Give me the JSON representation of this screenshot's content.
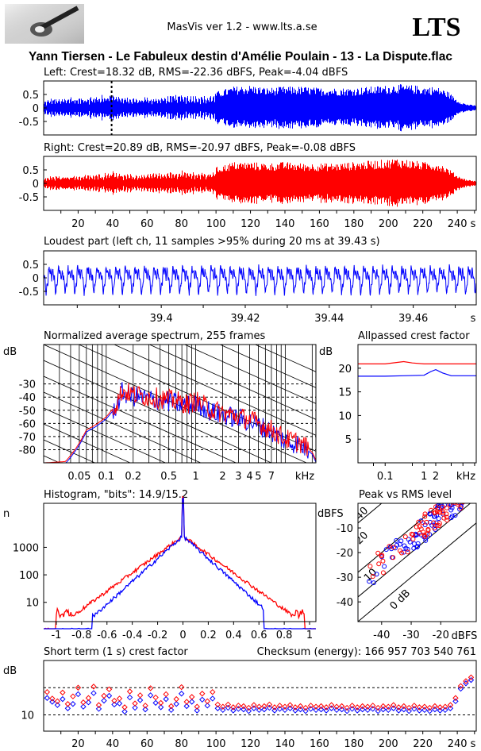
{
  "header": {
    "app": "MasVis ver 1.2 - www.lts.a.se",
    "brand": "LTS",
    "file": "Yann Tiersen - Le Fabuleux destin d'Amélie Poulain - 13 - La Dispute.flac"
  },
  "colors": {
    "left": "#0000ff",
    "right": "#ff0000"
  },
  "chart_data": [
    {
      "id": "left",
      "type": "line",
      "title": "Left: Crest=18.32 dB, RMS=-22.36 dBFS, Peak=-4.04 dBFS",
      "ylim": [
        -1,
        1
      ],
      "yticks": [
        0.5,
        0,
        -0.5
      ],
      "ytick_labels": [
        "0.5",
        "0",
        "-0.5"
      ],
      "xlim": [
        0,
        251
      ],
      "marker_x": 39.43,
      "envelope_t": [
        0,
        5,
        10,
        15,
        20,
        25,
        30,
        35,
        40,
        45,
        50,
        55,
        60,
        65,
        70,
        75,
        80,
        85,
        90,
        95,
        100,
        105,
        110,
        120,
        130,
        140,
        150,
        160,
        170,
        180,
        190,
        200,
        205,
        210,
        215,
        220,
        225,
        230,
        235,
        240,
        245,
        250
      ],
      "envelope_amp": [
        0.25,
        0.4,
        0.35,
        0.45,
        0.4,
        0.45,
        0.45,
        0.5,
        0.65,
        0.45,
        0.4,
        0.4,
        0.45,
        0.4,
        0.45,
        0.5,
        0.55,
        0.5,
        0.5,
        0.45,
        0.6,
        0.7,
        0.8,
        0.85,
        0.75,
        0.8,
        0.8,
        0.75,
        0.75,
        0.75,
        0.8,
        0.85,
        0.9,
        0.85,
        0.85,
        0.8,
        0.8,
        0.75,
        0.6,
        0.3,
        0.15,
        0.1
      ]
    },
    {
      "id": "right",
      "type": "line",
      "title": "Right: Crest=20.89 dB, RMS=-20.97 dBFS, Peak=-0.08 dBFS",
      "ylim": [
        -1,
        1
      ],
      "yticks": [
        0.5,
        0,
        -0.5
      ],
      "ytick_labels": [
        "0.5",
        "0",
        "-0.5"
      ],
      "xlim": [
        0,
        251
      ],
      "xticks": [
        20,
        40,
        60,
        80,
        100,
        120,
        140,
        160,
        180,
        200,
        220,
        240
      ],
      "xunit": "s",
      "envelope_t": [
        0,
        5,
        10,
        15,
        20,
        25,
        30,
        35,
        40,
        45,
        50,
        55,
        60,
        65,
        70,
        75,
        80,
        85,
        90,
        95,
        100,
        105,
        110,
        120,
        130,
        140,
        150,
        160,
        170,
        180,
        190,
        200,
        205,
        210,
        215,
        220,
        225,
        230,
        235,
        240,
        245,
        250
      ],
      "envelope_amp": [
        0.2,
        0.3,
        0.3,
        0.35,
        0.3,
        0.35,
        0.35,
        0.4,
        0.55,
        0.4,
        0.35,
        0.35,
        0.4,
        0.4,
        0.4,
        0.45,
        0.5,
        0.45,
        0.45,
        0.4,
        0.6,
        0.7,
        0.8,
        0.8,
        0.75,
        0.8,
        0.75,
        0.75,
        0.75,
        0.8,
        0.85,
        0.9,
        0.95,
        0.9,
        0.85,
        0.8,
        0.8,
        0.75,
        0.55,
        0.3,
        0.15,
        0.1
      ]
    },
    {
      "id": "loudest",
      "type": "line",
      "title": "Loudest part (left  ch, 11 samples >95% during 20 ms at 39.43 s)",
      "ylim": [
        -1,
        1
      ],
      "yticks": [
        0.5,
        0,
        -0.5
      ],
      "ytick_labels": [
        "0.5",
        "0",
        "-0.5"
      ],
      "xlim": [
        39.372,
        39.475
      ],
      "xticks": [
        39.4,
        39.42,
        39.44,
        39.46
      ],
      "xtick_labels": [
        "39.4",
        "39.42",
        "39.44",
        "39.46"
      ],
      "xunit": "s",
      "period_s": 0.00227,
      "amplitude": 0.55
    },
    {
      "id": "spectrum",
      "type": "line",
      "title": "Normalized average spectrum, 255 frames",
      "ylabel": "dB",
      "ylim": [
        -90,
        0
      ],
      "yticks": [
        -30,
        -40,
        -50,
        -60,
        -70,
        -80
      ],
      "xscale": "log",
      "xlim": [
        0.02,
        22
      ],
      "xunit": "kHz",
      "xtick_labels": [
        "0.05",
        "0.1",
        "0.2",
        "0.5",
        "1",
        "2",
        "3",
        "4",
        "5",
        "7"
      ],
      "xticks": [
        0.05,
        0.1,
        0.2,
        0.5,
        1,
        2,
        3,
        4,
        5,
        7
      ],
      "grid": "dotted",
      "curve_f": [
        0.02,
        0.035,
        0.05,
        0.06,
        0.08,
        0.1,
        0.13,
        0.15,
        0.2,
        0.3,
        0.5,
        0.8,
        1,
        1.5,
        2,
        3,
        4,
        5,
        7,
        10,
        15,
        20,
        22
      ],
      "curve_db": [
        -90,
        -89,
        -75,
        -65,
        -60,
        -55,
        -45,
        -35,
        -38,
        -40,
        -42,
        -45,
        -43,
        -50,
        -52,
        -55,
        -57,
        -60,
        -65,
        -72,
        -75,
        -82,
        -88
      ]
    },
    {
      "id": "crest_allpassed",
      "type": "line",
      "title": "Allpassed crest factor",
      "ylabel": "dB",
      "ylim": [
        0,
        25
      ],
      "yticks": [
        20,
        15,
        10,
        5
      ],
      "xscale": "log",
      "xlim": [
        0.02,
        22
      ],
      "xunit": "kHz",
      "xticks": [
        0.1,
        1,
        2
      ],
      "xtick_labels": [
        "0.1",
        "1",
        "2"
      ],
      "series": [
        {
          "name": "",
          "f": [
            0.02,
            0.1,
            0.3,
            0.5,
            1,
            2,
            5,
            22
          ],
          "db": [
            20.9,
            20.9,
            21.4,
            21.1,
            20.9,
            20.9,
            20.9,
            20.9
          ]
        },
        {
          "name": "",
          "f": [
            0.02,
            0.1,
            0.3,
            1,
            1.5,
            2,
            3,
            5,
            22
          ],
          "db": [
            18.3,
            18.3,
            18.4,
            18.5,
            19.3,
            19.7,
            19.0,
            18.4,
            18.4
          ]
        }
      ]
    },
    {
      "id": "histogram",
      "type": "line",
      "title": "Histogram, \"bits\": 14.9/15.2",
      "ylabel": "n",
      "yscale": "log",
      "yticks": [
        1000,
        100,
        10
      ],
      "ytick_labels": [
        "1000",
        "100",
        "10"
      ],
      "xlim": [
        -1.1,
        1.05
      ],
      "xticks": [
        -1,
        -0.8,
        -0.6,
        -0.4,
        -0.2,
        0,
        0.2,
        0.4,
        0.6,
        0.8,
        1
      ],
      "xtick_labels": [
        "-1",
        "-0.8",
        "-0.6",
        "-0.4",
        "-0.2",
        "0",
        "0.2",
        "0.4",
        "0.6",
        "0.8",
        "1"
      ]
    },
    {
      "id": "peak_vs_rms",
      "type": "scatter",
      "title": "Peak vs RMS level",
      "ylabel": "dBFS",
      "xlabel": "dBFS",
      "ylim": [
        -48,
        0
      ],
      "xlim": [
        -48,
        -8
      ],
      "yticks": [
        -10,
        -20,
        -30,
        -40
      ],
      "xticks": [
        -40,
        -30,
        -20
      ],
      "diagonal_labels": [
        "40",
        "20",
        "10",
        "0 dB"
      ]
    },
    {
      "id": "short_term_crest",
      "type": "scatter",
      "title": "Short term (1 s) crest factor",
      "checksum": "Checksum (energy):   166 957 703 540 761",
      "ylabel": "dB",
      "ytick_labels": [
        "10"
      ],
      "yticks": [
        10
      ],
      "xlim": [
        0,
        251
      ],
      "xticks": [
        20,
        40,
        60,
        80,
        100,
        120,
        140,
        160,
        180,
        200,
        220,
        240
      ],
      "xunit": "s",
      "left_t": [
        2,
        5,
        8,
        11,
        14,
        17,
        20,
        23,
        26,
        29,
        32,
        35,
        38,
        41,
        44,
        47,
        50,
        53,
        56,
        59,
        62,
        65,
        68,
        71,
        74,
        77,
        80,
        83,
        86,
        89,
        92,
        95,
        98,
        101,
        104,
        107,
        110,
        113,
        116,
        119,
        122,
        125,
        128,
        131,
        134,
        137,
        140,
        143,
        146,
        149,
        152,
        155,
        158,
        161,
        164,
        167,
        170,
        173,
        176,
        179,
        182,
        185,
        188,
        191,
        194,
        197,
        200,
        203,
        206,
        209,
        212,
        215,
        218,
        221,
        224,
        227,
        230,
        233,
        236,
        239,
        242,
        245,
        248
      ],
      "left_db": [
        13.1,
        12.4,
        11.8,
        12.9,
        11.2,
        12.0,
        13.8,
        11.5,
        12.3,
        14.0,
        11.1,
        12.6,
        13.5,
        11.9,
        12.1,
        10.6,
        13.2,
        11.3,
        12.7,
        11.0,
        13.6,
        12.2,
        11.4,
        12.9,
        10.9,
        12.0,
        13.9,
        11.6,
        12.4,
        10.8,
        12.8,
        11.7,
        13.0,
        11.2,
        10.9,
        11.3,
        10.8,
        11.1,
        11.0,
        10.7,
        11.2,
        10.9,
        11.0,
        11.3,
        10.8,
        11.1,
        10.9,
        11.2,
        10.8,
        11.0,
        10.7,
        11.1,
        10.9,
        11.0,
        10.8,
        11.2,
        10.9,
        11.0,
        10.7,
        11.1,
        10.8,
        11.0,
        10.9,
        11.1,
        10.7,
        11.0,
        10.9,
        11.2,
        10.8,
        11.0,
        10.7,
        11.1,
        10.8,
        10.9,
        10.7,
        11.0,
        10.8,
        10.9,
        11.2,
        12.5,
        14.8,
        15.8,
        16.4
      ],
      "right_db": [
        14.2,
        13.0,
        12.5,
        14.1,
        12.0,
        13.4,
        15.0,
        12.3,
        13.1,
        15.2,
        11.8,
        13.5,
        14.7,
        12.6,
        13.0,
        11.4,
        14.3,
        12.1,
        13.6,
        11.7,
        14.9,
        13.2,
        12.2,
        13.8,
        11.6,
        12.9,
        15.1,
        12.4,
        13.3,
        11.5,
        13.9,
        12.5,
        14.2,
        11.9,
        11.5,
        11.9,
        11.4,
        11.7,
        11.6,
        11.3,
        11.8,
        11.5,
        11.6,
        11.9,
        11.4,
        11.7,
        11.5,
        11.8,
        11.4,
        11.6,
        11.3,
        11.7,
        11.5,
        11.6,
        11.4,
        11.8,
        11.5,
        11.6,
        11.3,
        11.7,
        11.4,
        11.6,
        11.5,
        11.7,
        11.3,
        11.6,
        11.5,
        11.8,
        11.4,
        11.6,
        11.3,
        11.7,
        11.4,
        11.5,
        11.3,
        11.6,
        11.4,
        11.5,
        11.8,
        13.1,
        15.3,
        16.2,
        16.9
      ]
    }
  ]
}
